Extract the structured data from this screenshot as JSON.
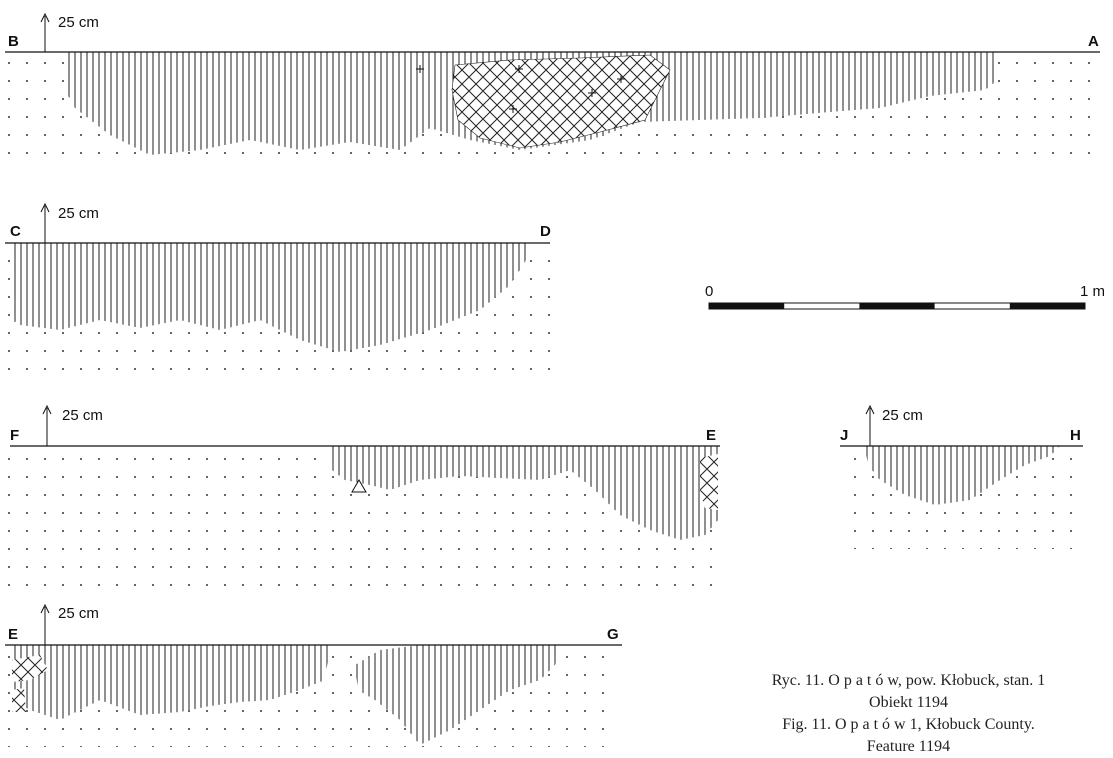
{
  "depth_label": "25 cm",
  "profiles": {
    "BA": {
      "left": "B",
      "right": "A"
    },
    "CD": {
      "left": "C",
      "right": "D"
    },
    "FE": {
      "left": "F",
      "right": "E"
    },
    "JH": {
      "left": "J",
      "right": "H"
    },
    "EG": {
      "left": "E",
      "right": "G"
    }
  },
  "scale": {
    "start": "0",
    "end": "1 m",
    "segments": 5
  },
  "caption": {
    "line1": "Ryc. 11. O p a t ó w,  pow. Kłobuck, stan. 1",
    "line2": "Obiekt 1194",
    "line3": "Fig. 11. O p a t ó w  1,  Kłobuck County.",
    "line4": "Feature 1194"
  }
}
